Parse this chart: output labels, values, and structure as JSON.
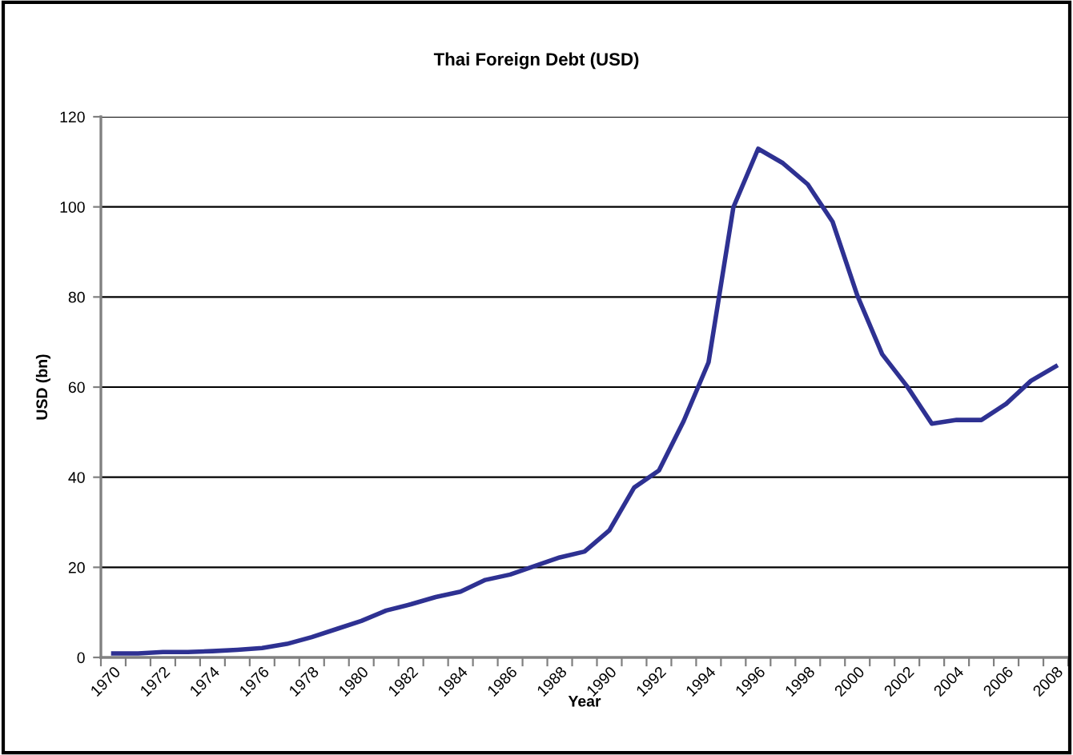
{
  "chart_data": {
    "type": "line",
    "title": "Thai Foreign Debt (USD)",
    "xlabel": "Year",
    "ylabel": "USD (bn)",
    "categories": [
      "1970",
      null,
      "1972",
      null,
      "1974",
      null,
      "1976",
      null,
      "1978",
      null,
      "1980",
      null,
      "1982",
      null,
      "1984",
      null,
      "1986",
      null,
      "1988",
      null,
      "1990",
      null,
      "1992",
      null,
      "1994",
      null,
      "1996",
      null,
      "1998",
      null,
      "2000",
      null,
      "2002",
      null,
      "2004",
      null,
      "2006",
      null,
      "2008"
    ],
    "series": [
      {
        "color": "#2e3192",
        "values": [
          0.9,
          0.9,
          1.2,
          1.2,
          1.4,
          1.7,
          2.1,
          3.0,
          4.5,
          6.3,
          8.1,
          10.4,
          11.8,
          13.4,
          14.6,
          17.2,
          18.4,
          20.3,
          22.2,
          23.5,
          28.2,
          37.7,
          41.5,
          52.5,
          65.5,
          99.9,
          112.9,
          109.7,
          105.0,
          96.7,
          80.3,
          67.3,
          60.2,
          51.9,
          52.7,
          52.7,
          56.3,
          61.4,
          64.6
        ]
      }
    ],
    "ylim": [
      0,
      120
    ],
    "yticks": [
      0,
      20,
      40,
      60,
      80,
      100,
      120
    ],
    "grid": "y",
    "marker": "none",
    "line_style": "solid"
  }
}
